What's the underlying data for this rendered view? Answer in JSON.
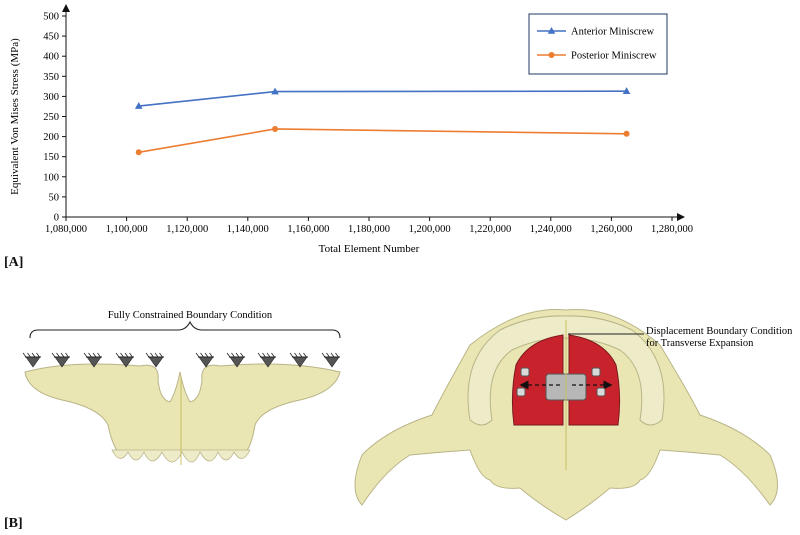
{
  "panels": {
    "a_label": "[A]",
    "b_label": "[B]"
  },
  "chart_data": {
    "type": "line",
    "x": [
      1104000,
      1149000,
      1265000
    ],
    "series": [
      {
        "name": "Anterior Miniscrew",
        "values": [
          276,
          312,
          313
        ],
        "color": "#4472c4",
        "marker": "triangle"
      },
      {
        "name": "Posterior Miniscrew",
        "values": [
          161,
          219,
          207
        ],
        "color": "#ed7d31",
        "marker": "circle"
      }
    ],
    "xlabel": "Total Element Number",
    "ylabel": "Equivalent Von Mises Stress (MPa)",
    "xlim": [
      1080000,
      1280000
    ],
    "ylim": [
      0,
      500
    ],
    "xticks": [
      1080000,
      1100000,
      1120000,
      1140000,
      1160000,
      1180000,
      1200000,
      1220000,
      1240000,
      1260000,
      1280000
    ],
    "xtick_labels": [
      "1,080,000",
      "1,100,000",
      "1,120,000",
      "1,140,000",
      "1,160,000",
      "1,180,000",
      "1,200,000",
      "1,220,000",
      "1,240,000",
      "1,260,000",
      "1,280,000"
    ],
    "yticks": [
      0,
      50,
      100,
      150,
      200,
      250,
      300,
      350,
      400,
      450,
      500
    ],
    "grid": false,
    "legend": "top-right"
  },
  "figure_b": {
    "left_annotation": "Fully Constrained Boundary Condition",
    "right_annotation_line1": "Displacement Boundary Condition",
    "right_annotation_line2": "for Transverse Expansion",
    "bone_color": "#e9e6b4",
    "palate_color": "#c8232c"
  }
}
